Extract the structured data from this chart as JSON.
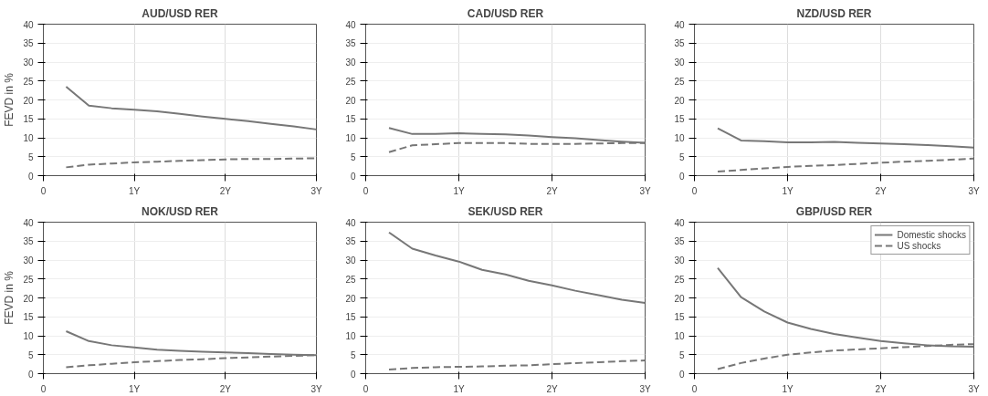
{
  "chart_data": [
    {
      "type": "line",
      "title": "AUD/USD RER",
      "ylabel": "FEVD in %",
      "x": [
        0.25,
        0.5,
        0.75,
        1,
        1.25,
        1.5,
        1.75,
        2,
        2.25,
        2.5,
        2.75,
        3
      ],
      "xlim": [
        0,
        3
      ],
      "xticks": [
        {
          "value": 0,
          "label": "0"
        },
        {
          "value": 1,
          "label": "1Y"
        },
        {
          "value": 2,
          "label": "2Y"
        },
        {
          "value": 3,
          "label": "3Y"
        }
      ],
      "ylim": [
        0,
        40
      ],
      "yticks": [
        0,
        5,
        10,
        15,
        20,
        25,
        30,
        35,
        40
      ],
      "grid": true,
      "legend": false,
      "series": [
        {
          "color": "#777777",
          "line_style": "solid",
          "values": [
            23.5,
            18.5,
            17.8,
            17.4,
            17.0,
            16.3,
            15.6,
            15.0,
            14.4,
            13.7,
            13.0,
            12.2
          ]
        },
        {
          "color": "#777777",
          "line_style": "dashed",
          "values": [
            2.2,
            2.9,
            3.2,
            3.5,
            3.7,
            3.9,
            4.1,
            4.3,
            4.4,
            4.4,
            4.5,
            4.6
          ]
        }
      ]
    },
    {
      "type": "line",
      "title": "CAD/USD RER",
      "x": [
        0.25,
        0.5,
        0.75,
        1,
        1.25,
        1.5,
        1.75,
        2,
        2.25,
        2.5,
        2.75,
        3
      ],
      "xlim": [
        0,
        3
      ],
      "xticks": [
        {
          "value": 0,
          "label": "0"
        },
        {
          "value": 1,
          "label": "1Y"
        },
        {
          "value": 2,
          "label": "2Y"
        },
        {
          "value": 3,
          "label": "3Y"
        }
      ],
      "ylim": [
        0,
        40
      ],
      "yticks": [
        0,
        5,
        10,
        15,
        20,
        25,
        30,
        35,
        40
      ],
      "grid": true,
      "legend": false,
      "series": [
        {
          "color": "#777777",
          "line_style": "solid",
          "values": [
            12.6,
            11.0,
            11.0,
            11.2,
            11.0,
            10.9,
            10.6,
            10.2,
            9.9,
            9.4,
            9.0,
            8.7
          ]
        },
        {
          "color": "#777777",
          "line_style": "dashed",
          "values": [
            6.2,
            8.0,
            8.3,
            8.6,
            8.6,
            8.6,
            8.4,
            8.4,
            8.4,
            8.5,
            8.6,
            8.6
          ]
        }
      ]
    },
    {
      "type": "line",
      "title": "NZD/USD RER",
      "x": [
        0.25,
        0.5,
        0.75,
        1,
        1.25,
        1.5,
        1.75,
        2,
        2.25,
        2.5,
        2.75,
        3
      ],
      "xlim": [
        0,
        3
      ],
      "xticks": [
        {
          "value": 0,
          "label": "0"
        },
        {
          "value": 1,
          "label": "1Y"
        },
        {
          "value": 2,
          "label": "2Y"
        },
        {
          "value": 3,
          "label": "3Y"
        }
      ],
      "ylim": [
        0,
        40
      ],
      "yticks": [
        0,
        5,
        10,
        15,
        20,
        25,
        30,
        35,
        40
      ],
      "grid": true,
      "legend": false,
      "series": [
        {
          "color": "#777777",
          "line_style": "solid",
          "values": [
            12.5,
            9.3,
            9.1,
            8.8,
            8.8,
            8.9,
            8.7,
            8.5,
            8.3,
            8.1,
            7.8,
            7.4
          ]
        },
        {
          "color": "#777777",
          "line_style": "dashed",
          "values": [
            1.1,
            1.5,
            1.9,
            2.3,
            2.6,
            2.8,
            3.1,
            3.4,
            3.7,
            3.9,
            4.2,
            4.5
          ]
        }
      ]
    },
    {
      "type": "line",
      "title": "NOK/USD RER",
      "ylabel": "FEVD in %",
      "x": [
        0.25,
        0.5,
        0.75,
        1,
        1.25,
        1.5,
        1.75,
        2,
        2.25,
        2.5,
        2.75,
        3
      ],
      "xlim": [
        0,
        3
      ],
      "xticks": [
        {
          "value": 0,
          "label": "0"
        },
        {
          "value": 1,
          "label": "1Y"
        },
        {
          "value": 2,
          "label": "2Y"
        },
        {
          "value": 3,
          "label": "3Y"
        }
      ],
      "ylim": [
        0,
        40
      ],
      "yticks": [
        0,
        5,
        10,
        15,
        20,
        25,
        30,
        35,
        40
      ],
      "grid": true,
      "legend": false,
      "series": [
        {
          "color": "#777777",
          "line_style": "solid",
          "values": [
            11.2,
            8.6,
            7.5,
            6.9,
            6.3,
            6.0,
            5.8,
            5.6,
            5.4,
            5.2,
            5.0,
            4.9
          ]
        },
        {
          "color": "#777777",
          "line_style": "dashed",
          "values": [
            1.7,
            2.2,
            2.6,
            3.0,
            3.3,
            3.6,
            3.8,
            4.1,
            4.3,
            4.5,
            4.7,
            4.9
          ]
        }
      ]
    },
    {
      "type": "line",
      "title": "SEK/USD RER",
      "x": [
        0.25,
        0.5,
        0.75,
        1,
        1.25,
        1.5,
        1.75,
        2,
        2.25,
        2.5,
        2.75,
        3
      ],
      "xlim": [
        0,
        3
      ],
      "xticks": [
        {
          "value": 0,
          "label": "0"
        },
        {
          "value": 1,
          "label": "1Y"
        },
        {
          "value": 2,
          "label": "2Y"
        },
        {
          "value": 3,
          "label": "3Y"
        }
      ],
      "ylim": [
        0,
        40
      ],
      "yticks": [
        0,
        5,
        10,
        15,
        20,
        25,
        30,
        35,
        40
      ],
      "grid": true,
      "legend": false,
      "series": [
        {
          "color": "#777777",
          "line_style": "solid",
          "values": [
            37.3,
            33.0,
            31.2,
            29.6,
            27.4,
            26.2,
            24.5,
            23.3,
            21.9,
            20.7,
            19.5,
            18.7
          ]
        },
        {
          "color": "#777777",
          "line_style": "dashed",
          "values": [
            1.1,
            1.5,
            1.7,
            1.8,
            1.9,
            2.1,
            2.2,
            2.5,
            2.8,
            3.0,
            3.3,
            3.5
          ]
        }
      ]
    },
    {
      "type": "line",
      "title": "GBP/USD RER",
      "x": [
        0.25,
        0.5,
        0.75,
        1,
        1.25,
        1.5,
        1.75,
        2,
        2.25,
        2.5,
        2.75,
        3
      ],
      "xlim": [
        0,
        3
      ],
      "xticks": [
        {
          "value": 0,
          "label": "0"
        },
        {
          "value": 1,
          "label": "1Y"
        },
        {
          "value": 2,
          "label": "2Y"
        },
        {
          "value": 3,
          "label": "3Y"
        }
      ],
      "ylim": [
        0,
        40
      ],
      "yticks": [
        0,
        5,
        10,
        15,
        20,
        25,
        30,
        35,
        40
      ],
      "grid": true,
      "legend": "top right",
      "series": [
        {
          "name": "Domestic shocks",
          "color": "#777777",
          "line_style": "solid",
          "values": [
            27.9,
            20.2,
            16.4,
            13.5,
            11.8,
            10.5,
            9.5,
            8.6,
            8.0,
            7.5,
            7.2,
            7.1
          ]
        },
        {
          "name": "US shocks",
          "color": "#777777",
          "line_style": "dashed",
          "values": [
            1.2,
            2.8,
            4.0,
            5.0,
            5.6,
            6.1,
            6.4,
            6.7,
            7.0,
            7.3,
            7.6,
            7.8
          ]
        }
      ]
    }
  ]
}
